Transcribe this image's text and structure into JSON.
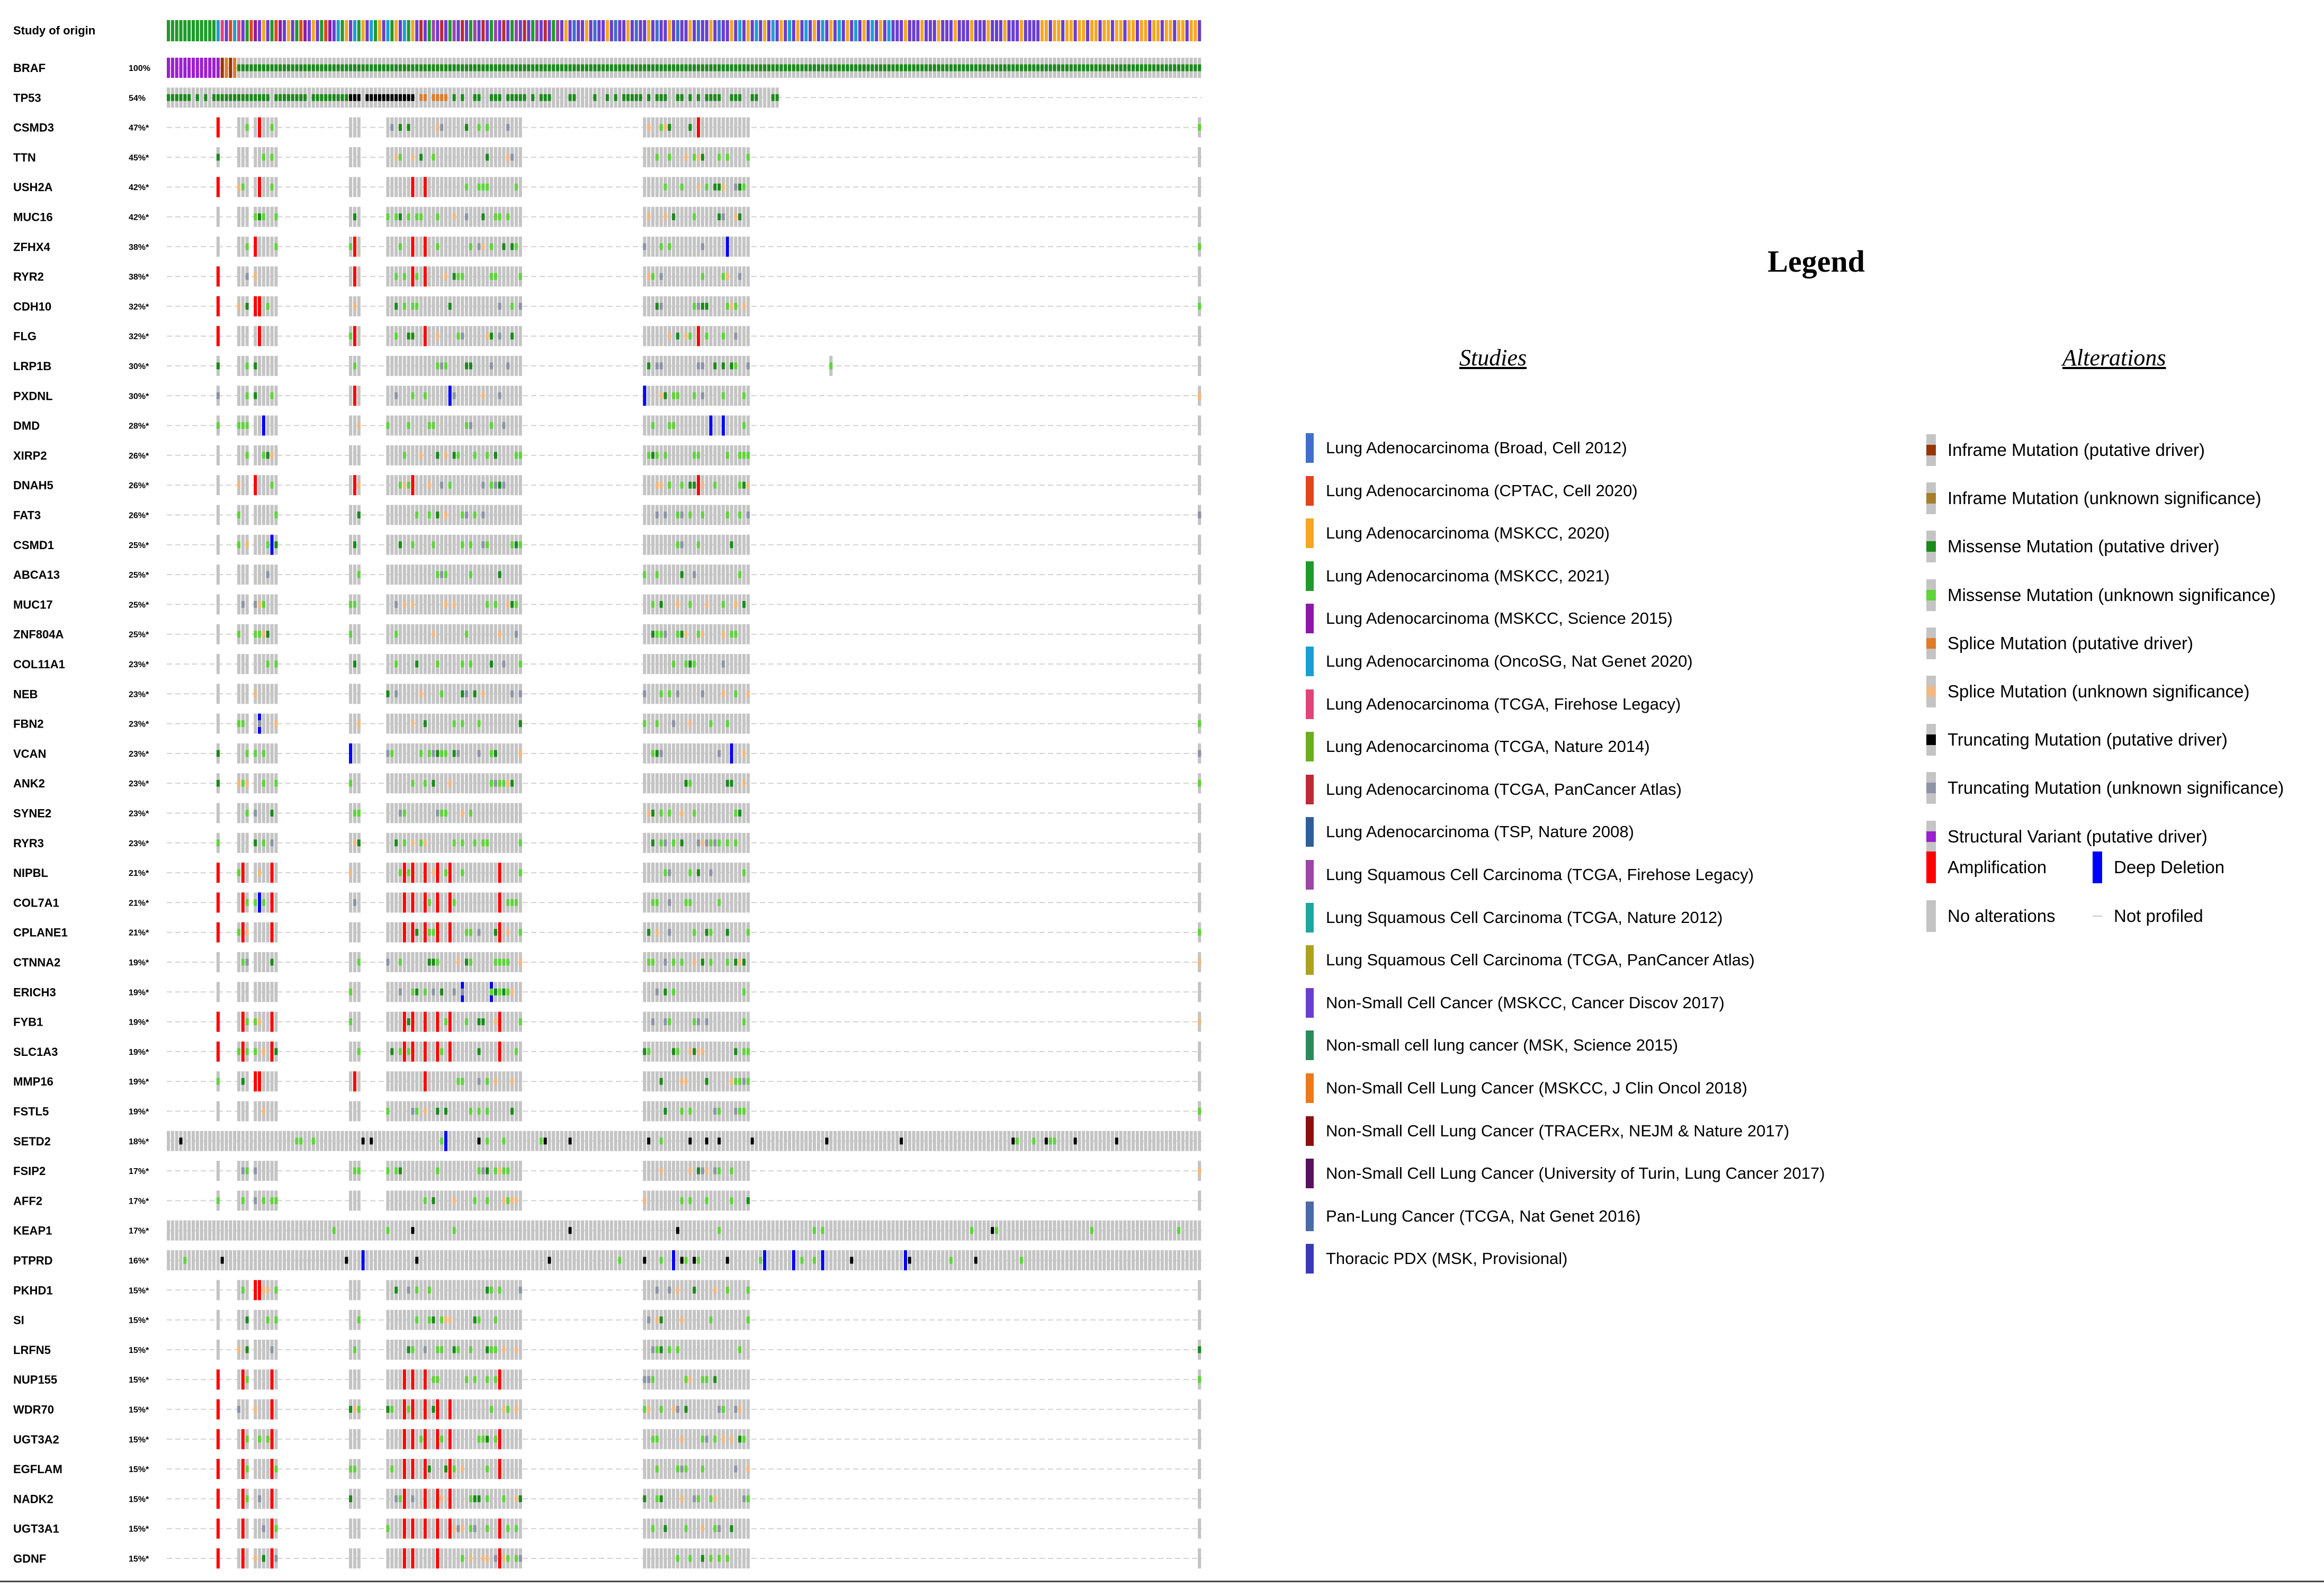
{
  "oncoprint": {
    "header_label": "Study of origin",
    "genes": [
      {
        "name": "BRAF",
        "pct": "100%"
      },
      {
        "name": "TP53",
        "pct": "54%"
      },
      {
        "name": "CSMD3",
        "pct": "47%*"
      },
      {
        "name": "TTN",
        "pct": "45%*"
      },
      {
        "name": "USH2A",
        "pct": "42%*"
      },
      {
        "name": "MUC16",
        "pct": "42%*"
      },
      {
        "name": "ZFHX4",
        "pct": "38%*"
      },
      {
        "name": "RYR2",
        "pct": "38%*"
      },
      {
        "name": "CDH10",
        "pct": "32%*"
      },
      {
        "name": "FLG",
        "pct": "32%*"
      },
      {
        "name": "LRP1B",
        "pct": "30%*"
      },
      {
        "name": "PXDNL",
        "pct": "30%*"
      },
      {
        "name": "DMD",
        "pct": "28%*"
      },
      {
        "name": "XIRP2",
        "pct": "26%*"
      },
      {
        "name": "DNAH5",
        "pct": "26%*"
      },
      {
        "name": "FAT3",
        "pct": "26%*"
      },
      {
        "name": "CSMD1",
        "pct": "25%*"
      },
      {
        "name": "ABCA13",
        "pct": "25%*"
      },
      {
        "name": "MUC17",
        "pct": "25%*"
      },
      {
        "name": "ZNF804A",
        "pct": "25%*"
      },
      {
        "name": "COL11A1",
        "pct": "23%*"
      },
      {
        "name": "NEB",
        "pct": "23%*"
      },
      {
        "name": "FBN2",
        "pct": "23%*"
      },
      {
        "name": "VCAN",
        "pct": "23%*"
      },
      {
        "name": "ANK2",
        "pct": "23%*"
      },
      {
        "name": "SYNE2",
        "pct": "23%*"
      },
      {
        "name": "RYR3",
        "pct": "23%*"
      },
      {
        "name": "NIPBL",
        "pct": "21%*"
      },
      {
        "name": "COL7A1",
        "pct": "21%*"
      },
      {
        "name": "CPLANE1",
        "pct": "21%*"
      },
      {
        "name": "CTNNA2",
        "pct": "19%*"
      },
      {
        "name": "ERICH3",
        "pct": "19%*"
      },
      {
        "name": "FYB1",
        "pct": "19%*"
      },
      {
        "name": "SLC1A3",
        "pct": "19%*"
      },
      {
        "name": "MMP16",
        "pct": "19%*"
      },
      {
        "name": "FSTL5",
        "pct": "19%*"
      },
      {
        "name": "SETD2",
        "pct": "18%*"
      },
      {
        "name": "FSIP2",
        "pct": "17%*"
      },
      {
        "name": "AFF2",
        "pct": "17%*"
      },
      {
        "name": "KEAP1",
        "pct": "17%*"
      },
      {
        "name": "PTPRD",
        "pct": "16%*"
      },
      {
        "name": "PKHD1",
        "pct": "15%*"
      },
      {
        "name": "SI",
        "pct": "15%*"
      },
      {
        "name": "LRFN5",
        "pct": "15%*"
      },
      {
        "name": "NUP155",
        "pct": "15%*"
      },
      {
        "name": "WDR70",
        "pct": "15%*"
      },
      {
        "name": "UGT3A2",
        "pct": "15%*"
      },
      {
        "name": "EGFLAM",
        "pct": "15%*"
      },
      {
        "name": "NADK2",
        "pct": "15%*"
      },
      {
        "name": "UGT3A1",
        "pct": "15%*"
      },
      {
        "name": "GDNF",
        "pct": "15%*"
      }
    ],
    "colors": {
      "no_alteration": "#c4c4c4",
      "not_profiled_line": "#d2d2d2",
      "missense_vus": "#5fd43b",
      "missense_driver": "#1a8a1a",
      "truncating_driver": "#000000",
      "truncating_vus": "#8c94a6",
      "splice_driver": "#e07b28",
      "splice_vus": "#f2b880",
      "inframe_driver": "#993404",
      "inframe_vus": "#a68028",
      "structural_variant": "#9b1fd0",
      "amplification": "#ff0000",
      "deep_deletion": "#0000ff"
    }
  },
  "legend": {
    "title": "Legend",
    "studies_title": "Studies",
    "alterations_title": "Alterations",
    "studies": [
      {
        "label": "Lung Adenocarcinoma (Broad, Cell 2012)",
        "color": "#3f6fc8"
      },
      {
        "label": "Lung Adenocarcinoma (CPTAC, Cell 2020)",
        "color": "#e2441c"
      },
      {
        "label": "Lung Adenocarcinoma (MSKCC, 2020)",
        "color": "#f5a623"
      },
      {
        "label": "Lung Adenocarcinoma (MSKCC, 2021)",
        "color": "#1f9a2a"
      },
      {
        "label": "Lung Adenocarcinoma (MSKCC, Science 2015)",
        "color": "#8c1aa8"
      },
      {
        "label": "Lung Adenocarcinoma (OncoSG, Nat Genet 2020)",
        "color": "#1a9fd0"
      },
      {
        "label": "Lung Adenocarcinoma (TCGA, Firehose Legacy)",
        "color": "#e0457a"
      },
      {
        "label": "Lung Adenocarcinoma (TCGA, Nature 2014)",
        "color": "#6ab01e"
      },
      {
        "label": "Lung Adenocarcinoma (TCGA, PanCancer Atlas)",
        "color": "#bb2b35"
      },
      {
        "label": "Lung Adenocarcinoma (TSP, Nature 2008)",
        "color": "#2d5f9a"
      },
      {
        "label": "Lung Squamous Cell Carcinoma (TCGA, Firehose Legacy)",
        "color": "#9a45a8"
      },
      {
        "label": "Lung Squamous Cell Carcinoma (TCGA, Nature 2012)",
        "color": "#1fa6a0"
      },
      {
        "label": "Lung Squamous Cell Carcinoma (TCGA, PanCancer Atlas)",
        "color": "#b0a020"
      },
      {
        "label": "Non-Small Cell Cancer (MSKCC, Cancer Discov 2017)",
        "color": "#6a3ed0"
      },
      {
        "label": "Non-small cell lung cancer (MSK, Science 2015)",
        "color": "#2a8a5a"
      },
      {
        "label": "Non-Small Cell Lung Cancer (MSKCC, J Clin Oncol 2018)",
        "color": "#ea7a1a"
      },
      {
        "label": "Non-Small Cell Lung Cancer (TRACERx, NEJM & Nature 2017)",
        "color": "#8a1010"
      },
      {
        "label": "Non-Small Cell Lung Cancer (University of Turin, Lung Cancer 2017)",
        "color": "#5a1060"
      },
      {
        "label": "Pan-Lung Cancer (TCGA, Nat Genet 2016)",
        "color": "#4a6aa8"
      },
      {
        "label": "Thoracic PDX (MSK, Provisional)",
        "color": "#3a3ab8"
      }
    ],
    "alterations": [
      {
        "label": "Inframe Mutation (putative driver)",
        "color": "#993404",
        "kind": "small"
      },
      {
        "label": "Inframe Mutation (unknown significance)",
        "color": "#a68028",
        "kind": "small"
      },
      {
        "label": "Missense Mutation (putative driver)",
        "color": "#1a8a1a",
        "kind": "small"
      },
      {
        "label": "Missense Mutation (unknown significance)",
        "color": "#5fd43b",
        "kind": "small"
      },
      {
        "label": "Splice Mutation (putative driver)",
        "color": "#e07b28",
        "kind": "small"
      },
      {
        "label": "Splice Mutation (unknown significance)",
        "color": "#f2b880",
        "kind": "small"
      },
      {
        "label": "Truncating Mutation (putative driver)",
        "color": "#000000",
        "kind": "small"
      },
      {
        "label": "Truncating Mutation (unknown significance)",
        "color": "#8c94a6",
        "kind": "small"
      },
      {
        "label": "Structural Variant (putative driver)",
        "color": "#9b1fd0",
        "kind": "small"
      }
    ],
    "amplification_label": "Amplification",
    "deep_deletion_label": "Deep Deletion",
    "no_alterations_label": "No alterations",
    "not_profiled_label": "Not profiled",
    "amplification_color": "#ff0000",
    "deep_deletion_color": "#0000ff"
  }
}
